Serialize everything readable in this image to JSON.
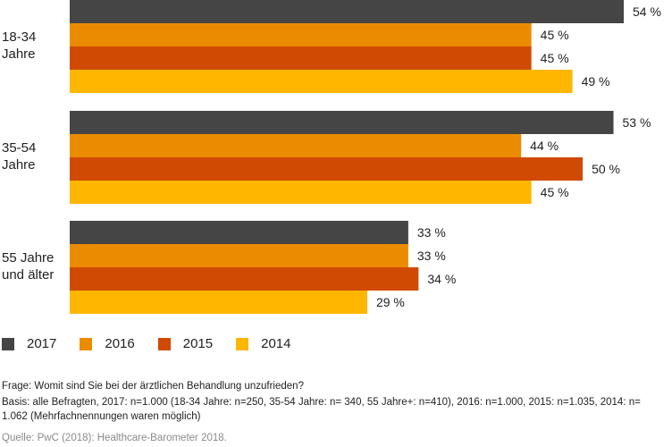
{
  "chart_data": {
    "type": "bar",
    "orientation": "horizontal",
    "categories": [
      "18-34 Jahre",
      "35-54 Jahre",
      "55 Jahre und älter"
    ],
    "category_lines": [
      [
        "18-34",
        "Jahre"
      ],
      [
        "35-54",
        "Jahre"
      ],
      [
        "55 Jahre",
        "und älter"
      ]
    ],
    "series": [
      {
        "name": "2017",
        "color": "#454545",
        "values": [
          54,
          53,
          33
        ]
      },
      {
        "name": "2016",
        "color": "#eb8c00",
        "values": [
          45,
          44,
          33
        ]
      },
      {
        "name": "2015",
        "color": "#d04a02",
        "values": [
          45,
          50,
          34
        ]
      },
      {
        "name": "2014",
        "color": "#ffb600",
        "values": [
          49,
          45,
          29
        ]
      }
    ],
    "value_suffix": " %",
    "xlim": [
      0,
      54
    ],
    "legend_position": "bottom-left"
  },
  "notes": {
    "question": "Frage: Womit sind Sie bei der ärztlichen Behandlung unzufrieden?",
    "basis": "Basis: alle Befragten, 2017: n=1.000 (18-34 Jahre: n=250, 35-54 Jahre: n= 340, 55 Jahre+: n=410), 2016: n=1.000, 2015: n=1.035, 2014: n= 1.062 (Mehrfachnennungen waren möglich)",
    "source": "Quelle: PwC (2018): Healthcare-Barometer 2018."
  }
}
